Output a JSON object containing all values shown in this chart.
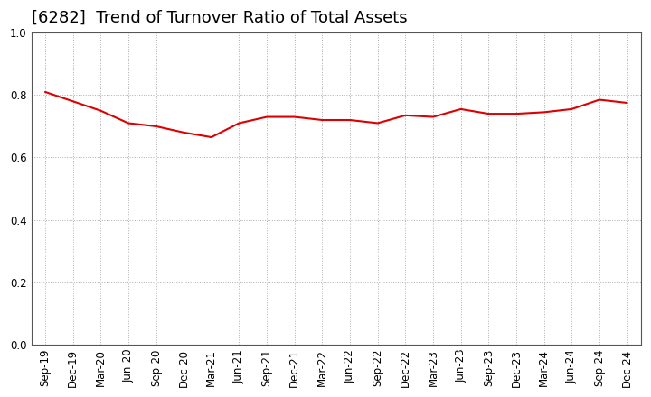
{
  "title": "[6282]  Trend of Turnover Ratio of Total Assets",
  "x_labels": [
    "Sep-19",
    "Dec-19",
    "Mar-20",
    "Jun-20",
    "Sep-20",
    "Dec-20",
    "Mar-21",
    "Jun-21",
    "Sep-21",
    "Dec-21",
    "Mar-22",
    "Jun-22",
    "Sep-22",
    "Dec-22",
    "Mar-23",
    "Jun-23",
    "Sep-23",
    "Dec-23",
    "Mar-24",
    "Jun-24",
    "Sep-24",
    "Dec-24"
  ],
  "y_values": [
    0.81,
    0.78,
    0.75,
    0.71,
    0.7,
    0.68,
    0.665,
    0.71,
    0.73,
    0.73,
    0.72,
    0.72,
    0.71,
    0.735,
    0.73,
    0.755,
    0.74,
    0.74,
    0.745,
    0.755,
    0.785,
    0.775
  ],
  "line_color": "#dd0000",
  "line_width": 1.5,
  "ylim": [
    0.0,
    1.0
  ],
  "yticks": [
    0.0,
    0.2,
    0.4,
    0.6,
    0.8,
    1.0
  ],
  "background_color": "#ffffff",
  "plot_bg_color": "#ffffff",
  "grid_color": "#999999",
  "title_fontsize": 13,
  "tick_fontsize": 8.5,
  "title_color": "#000000",
  "title_fontweight": "normal"
}
